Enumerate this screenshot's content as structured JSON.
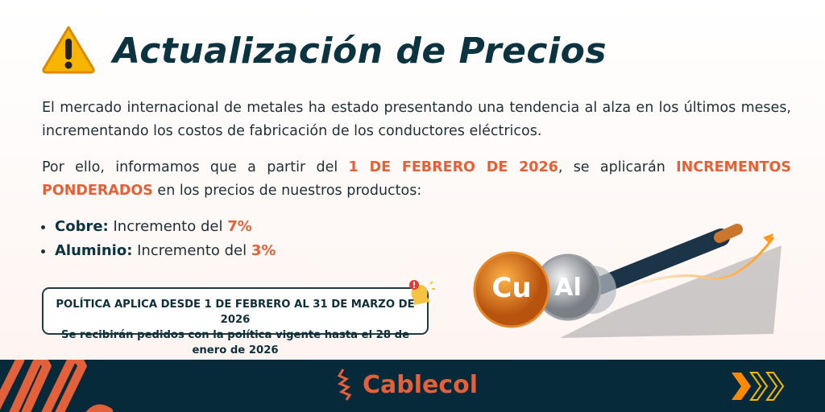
{
  "header": {
    "title": "Actualización de Precios",
    "icon": "warning-icon"
  },
  "intro": "El mercado internacional de metales ha estado presentando una tendencia al alza en los últimos meses, incrementando los costos de fabricación de los conductores eléctricos.",
  "notice": {
    "prefix": "Por ello, informamos que a partir del ",
    "date": "1 DE FEBRERO DE 2026",
    "middle": ", se aplicarán ",
    "highlight": "INCREMENTOS PONDERADOS",
    "suffix": " en los precios de nuestros productos:"
  },
  "items": [
    {
      "metal": "Cobre:",
      "text": " Incremento del ",
      "value": "7%"
    },
    {
      "metal": "Aluminio:",
      "text": " Incremento del ",
      "value": "3%"
    }
  ],
  "policy": {
    "line1": "POLÍTICA APLICA DESDE 1 DE FEBRERO AL 31 DE MARZO DE 2026",
    "line2": "Se recibirán pedidos con la política vigente hasta el 28 de enero de 2026"
  },
  "illustration": {
    "coin1": "Cu",
    "coin2": "Al"
  },
  "footer": {
    "brand": "Cablecol"
  },
  "colors": {
    "accent": "#e65f35",
    "navy": "#062a3a",
    "title": "#0b3340"
  }
}
